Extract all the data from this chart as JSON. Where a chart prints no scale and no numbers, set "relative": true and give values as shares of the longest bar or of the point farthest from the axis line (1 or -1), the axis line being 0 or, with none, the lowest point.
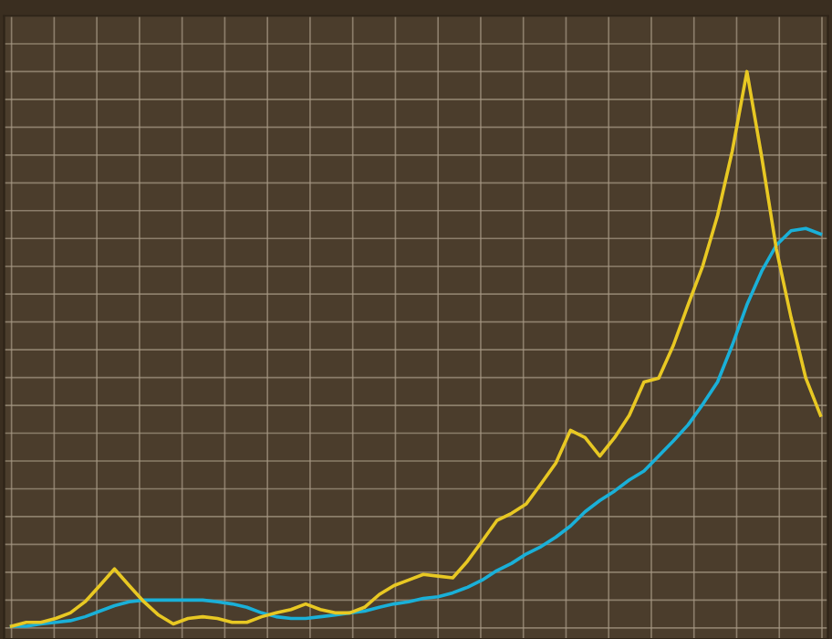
{
  "chart_data": {
    "type": "line",
    "relative": true,
    "grid": true,
    "legend": false,
    "marker": "none",
    "line_style": "solid",
    "categories": [
      null,
      null,
      null,
      null,
      null,
      null,
      null,
      null,
      null,
      null,
      null,
      null,
      null,
      null,
      null,
      null,
      null,
      null,
      null,
      null,
      null,
      null,
      null,
      null,
      null,
      null,
      null,
      null,
      null,
      null,
      null,
      null,
      null,
      null,
      null,
      null,
      null,
      null,
      null,
      null,
      null,
      null,
      null,
      null,
      null,
      null,
      null,
      null,
      null,
      null,
      null,
      null,
      null,
      null,
      null,
      null
    ],
    "series": [
      {
        "color": "#1ab0d8",
        "values": [
          0.003,
          0.003,
          0.007,
          0.01,
          0.013,
          0.02,
          0.03,
          0.04,
          0.047,
          0.05,
          0.05,
          0.05,
          0.05,
          0.05,
          0.047,
          0.043,
          0.037,
          0.027,
          0.02,
          0.017,
          0.017,
          0.02,
          0.023,
          0.027,
          0.03,
          0.037,
          0.043,
          0.047,
          0.053,
          0.056,
          0.063,
          0.073,
          0.086,
          0.103,
          0.116,
          0.133,
          0.146,
          0.163,
          0.183,
          0.209,
          0.229,
          0.246,
          0.266,
          0.282,
          0.309,
          0.336,
          0.365,
          0.402,
          0.442,
          0.508,
          0.581,
          0.641,
          0.688,
          0.714,
          0.718,
          0.708
        ]
      },
      {
        "color": "#e8c823",
        "values": [
          0.003,
          0.01,
          0.01,
          0.017,
          0.027,
          0.047,
          0.076,
          0.106,
          0.076,
          0.047,
          0.023,
          0.007,
          0.017,
          0.02,
          0.017,
          0.01,
          0.01,
          0.02,
          0.027,
          0.033,
          0.043,
          0.033,
          0.027,
          0.027,
          0.037,
          0.06,
          0.076,
          0.086,
          0.096,
          0.093,
          0.09,
          0.12,
          0.156,
          0.193,
          0.206,
          0.223,
          0.259,
          0.296,
          0.355,
          0.342,
          0.309,
          0.342,
          0.382,
          0.442,
          0.449,
          0.508,
          0.581,
          0.651,
          0.741,
          0.857,
          1,
          0.847,
          0.681,
          0.558,
          0.449,
          0.382
        ]
      }
    ]
  }
}
